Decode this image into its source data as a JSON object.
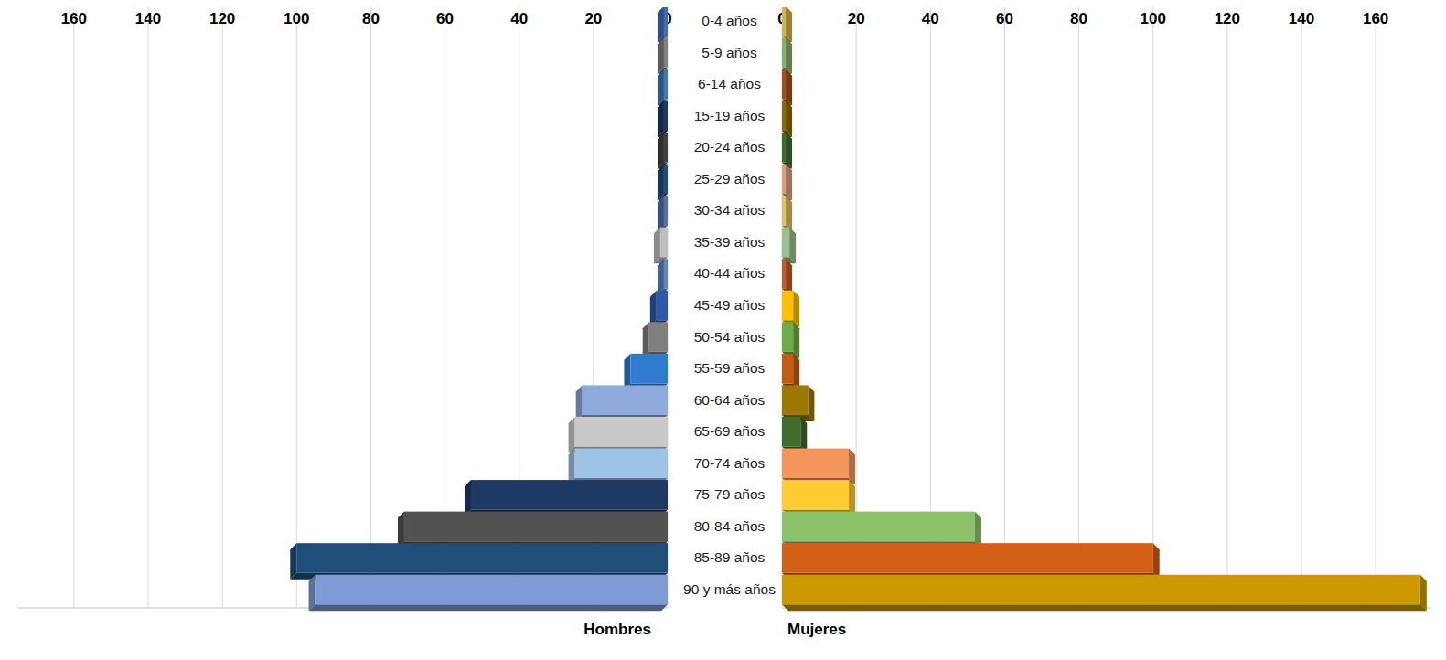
{
  "chart_data": {
    "type": "bar",
    "orientation": "horizontal",
    "grid": true,
    "categories": [
      "0-4 años",
      "5-9 años",
      "6-14 años",
      "15-19 años",
      "20-24 años",
      "25-29 años",
      "30-34 años",
      "35-39 años",
      "40-44 años",
      "45-49 años",
      "50-54 años",
      "55-59 años",
      "60-64 años",
      "65-69 años",
      "70-74 años",
      "75-79 años",
      "80-84 años",
      "85-89 años",
      "90 y más años"
    ],
    "series": [
      {
        "name": "Hombres",
        "values": [
          1,
          1,
          1,
          1,
          1,
          1,
          1,
          2,
          1,
          3,
          5,
          10,
          23,
          25,
          25,
          53,
          71,
          100,
          95
        ],
        "colors": [
          "#3e6db5",
          "#808080",
          "#3f79b5",
          "#1f3864",
          "#404040",
          "#1f4e79",
          "#5470a8",
          "#bfbfbf",
          "#5b86c0",
          "#2e58a8",
          "#7f7f7f",
          "#2e7bcf",
          "#8faadc",
          "#c9c9c9",
          "#9dc3e6",
          "#203864",
          "#525252",
          "#1f4e79",
          "#7f9bd6"
        ]
      },
      {
        "name": "Mujeres",
        "values": [
          1,
          1,
          1,
          1,
          1,
          1,
          1,
          2,
          1,
          3,
          3,
          3,
          7,
          5,
          18,
          18,
          52,
          100,
          172
        ],
        "colors": [
          "#d4b44a",
          "#8cae6c",
          "#a0501a",
          "#8a6a00",
          "#3e6b2f",
          "#d8a080",
          "#e0c060",
          "#9cc08c",
          "#c05a28",
          "#ffc000",
          "#70ad47",
          "#c55a11",
          "#9c7800",
          "#3f6b2b",
          "#f4965c",
          "#ffcd33",
          "#8dc26a",
          "#d45f16",
          "#cc9900"
        ]
      }
    ],
    "xlim": [
      0,
      175
    ],
    "xticks": [
      0,
      20,
      40,
      60,
      80,
      100,
      120,
      140,
      160
    ]
  }
}
